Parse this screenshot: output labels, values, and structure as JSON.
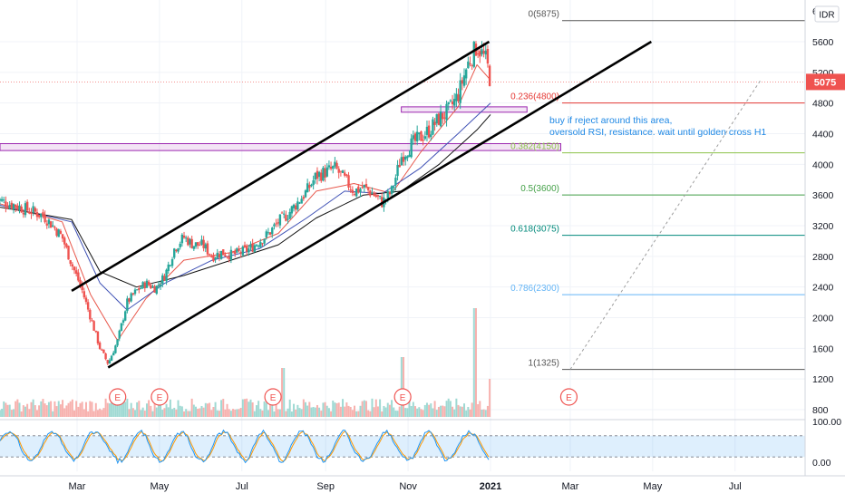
{
  "chart_data": {
    "type": "candlestick",
    "symbol_currency": "IDR",
    "last_price": 5075,
    "last_price_label": "5075",
    "price_axis": {
      "ticks": [
        800,
        1200,
        1600,
        2000,
        2400,
        2800,
        3200,
        3600,
        4000,
        4400,
        4800,
        5200,
        5600
      ],
      "top_partial_label": "6"
    },
    "time_axis": {
      "labels": [
        {
          "label": "Mar",
          "date": "2020-03-01"
        },
        {
          "label": "May",
          "date": "2020-05-01"
        },
        {
          "label": "Jul",
          "date": "2020-07-01"
        },
        {
          "label": "Sep",
          "date": "2020-09-01"
        },
        {
          "label": "Nov",
          "date": "2020-11-01"
        },
        {
          "label": "2021",
          "date": "2021-01-01"
        },
        {
          "label": "Mar",
          "date": "2021-03-01"
        },
        {
          "label": "May",
          "date": "2021-05-01"
        },
        {
          "label": "Jul",
          "date": "2021-07-01"
        }
      ]
    },
    "price_path": [
      [
        "2020-01-01",
        3550
      ],
      [
        "2020-01-08",
        3500
      ],
      [
        "2020-01-15",
        3470
      ],
      [
        "2020-01-22",
        3420
      ],
      [
        "2020-01-29",
        3380
      ],
      [
        "2020-02-05",
        3330
      ],
      [
        "2020-02-12",
        3200
      ],
      [
        "2020-02-19",
        3050
      ],
      [
        "2020-02-26",
        2700
      ],
      [
        "2020-03-04",
        2400
      ],
      [
        "2020-03-11",
        2000
      ],
      [
        "2020-03-18",
        1600
      ],
      [
        "2020-03-24",
        1400
      ],
      [
        "2020-03-31",
        1700
      ],
      [
        "2020-04-07",
        2200
      ],
      [
        "2020-04-14",
        2350
      ],
      [
        "2020-04-21",
        2450
      ],
      [
        "2020-04-28",
        2380
      ],
      [
        "2020-05-05",
        2550
      ],
      [
        "2020-05-12",
        2900
      ],
      [
        "2020-05-19",
        3050
      ],
      [
        "2020-05-26",
        2950
      ],
      [
        "2020-06-02",
        2950
      ],
      [
        "2020-06-09",
        2800
      ],
      [
        "2020-06-16",
        2850
      ],
      [
        "2020-06-23",
        2820
      ],
      [
        "2020-06-30",
        2850
      ],
      [
        "2020-07-07",
        2900
      ],
      [
        "2020-07-14",
        3000
      ],
      [
        "2020-07-21",
        3100
      ],
      [
        "2020-07-28",
        3250
      ],
      [
        "2020-08-04",
        3350
      ],
      [
        "2020-08-11",
        3500
      ],
      [
        "2020-08-18",
        3650
      ],
      [
        "2020-08-25",
        3850
      ],
      [
        "2020-09-01",
        3900
      ],
      [
        "2020-09-08",
        3950
      ],
      [
        "2020-09-15",
        3800
      ],
      [
        "2020-09-22",
        3650
      ],
      [
        "2020-09-29",
        3700
      ],
      [
        "2020-10-06",
        3620
      ],
      [
        "2020-10-13",
        3500
      ],
      [
        "2020-10-20",
        3650
      ],
      [
        "2020-10-27",
        4100
      ],
      [
        "2020-11-03",
        4250
      ],
      [
        "2020-11-10",
        4350
      ],
      [
        "2020-11-17",
        4450
      ],
      [
        "2020-11-24",
        4600
      ],
      [
        "2020-12-01",
        4700
      ],
      [
        "2020-12-08",
        4900
      ],
      [
        "2020-12-15",
        5300
      ],
      [
        "2020-12-22",
        5550
      ],
      [
        "2020-12-29",
        5350
      ],
      [
        "2021-01-01",
        5075
      ]
    ],
    "moving_averages": [
      {
        "color": "#e8564a",
        "points": [
          [
            "2020-01-01",
            3500
          ],
          [
            "2020-02-19",
            3250
          ],
          [
            "2020-03-11",
            2300
          ],
          [
            "2020-03-31",
            1700
          ],
          [
            "2020-04-21",
            2250
          ],
          [
            "2020-05-19",
            2750
          ],
          [
            "2020-06-23",
            2850
          ],
          [
            "2020-07-28",
            3100
          ],
          [
            "2020-08-25",
            3650
          ],
          [
            "2020-09-22",
            3750
          ],
          [
            "2020-10-20",
            3620
          ],
          [
            "2020-11-10",
            4150
          ],
          [
            "2020-12-08",
            4750
          ],
          [
            "2020-12-22",
            5300
          ],
          [
            "2021-01-01",
            5100
          ]
        ]
      },
      {
        "color": "#3f51b5",
        "points": [
          [
            "2020-01-01",
            3480
          ],
          [
            "2020-02-26",
            3250
          ],
          [
            "2020-03-18",
            2450
          ],
          [
            "2020-04-07",
            2100
          ],
          [
            "2020-05-05",
            2450
          ],
          [
            "2020-06-09",
            2750
          ],
          [
            "2020-07-14",
            2900
          ],
          [
            "2020-08-18",
            3300
          ],
          [
            "2020-09-15",
            3650
          ],
          [
            "2020-10-13",
            3620
          ],
          [
            "2020-11-10",
            3950
          ],
          [
            "2020-12-08",
            4400
          ],
          [
            "2021-01-01",
            4800
          ]
        ]
      },
      {
        "color": "#111111",
        "points": [
          [
            "2020-01-01",
            3450
          ],
          [
            "2020-02-26",
            3280
          ],
          [
            "2020-03-18",
            2600
          ],
          [
            "2020-04-14",
            2400
          ],
          [
            "2020-05-19",
            2550
          ],
          [
            "2020-06-23",
            2750
          ],
          [
            "2020-07-28",
            2950
          ],
          [
            "2020-08-25",
            3300
          ],
          [
            "2020-09-29",
            3600
          ],
          [
            "2020-10-27",
            3650
          ],
          [
            "2020-11-24",
            4000
          ],
          [
            "2020-12-22",
            4450
          ],
          [
            "2021-01-01",
            4650
          ]
        ]
      }
    ],
    "channel_lines": [
      {
        "points": [
          [
            "2020-02-26",
            2350
          ],
          [
            "2020-12-31",
            5600
          ]
        ]
      },
      {
        "points": [
          [
            "2020-03-24",
            1350
          ],
          [
            "2021-04-30",
            5600
          ]
        ]
      }
    ],
    "dotted_projection": {
      "points": [
        [
          "2021-03-01",
          1325
        ],
        [
          "2021-07-20",
          5100
        ]
      ]
    },
    "fibonacci": [
      {
        "label": "0(5875)",
        "value": 5875,
        "color": "#555555"
      },
      {
        "label": "0.236(4800)",
        "value": 4800,
        "color": "#e53935"
      },
      {
        "label": "0.382(4150)",
        "value": 4150,
        "color": "#8bc34a"
      },
      {
        "label": "0.5(3600)",
        "value": 3600,
        "color": "#43a047"
      },
      {
        "label": "0.618(3075)",
        "value": 3075,
        "color": "#00897b"
      },
      {
        "label": "0.786(2300)",
        "value": 2300,
        "color": "#64b5f6"
      },
      {
        "label": "1(1325)",
        "value": 1325,
        "color": "#555555"
      }
    ],
    "zones": [
      {
        "from": "2020-10-27",
        "to": "2021-01-28",
        "low": 4680,
        "high": 4750
      },
      {
        "from": "2020-01-01",
        "to": "2021-02-22",
        "low": 4180,
        "high": 4270
      }
    ],
    "annotation": {
      "lines": [
        "buy if reject around this area,",
        "oversold RSI, resistance. wait until golden cross H1"
      ],
      "color": "#1e88e5"
    },
    "earnings_markers": {
      "label": "E",
      "dates": [
        "2020-03-31",
        "2020-05-01",
        "2020-07-24",
        "2020-10-28",
        "2021-02-28"
      ]
    },
    "volume_spikes": [
      [
        "2020-07-31",
        0.45
      ],
      [
        "2020-10-28",
        0.55
      ],
      [
        "2020-12-21",
        1.0
      ],
      [
        "2021-01-01",
        0.35
      ]
    ],
    "stoch_rsi": {
      "axis_labels": [
        "100.00",
        "0.00"
      ],
      "upper_band": 80,
      "lower_band": 20,
      "k_color": "#2196f3",
      "d_color": "#ff9800"
    },
    "colors": {
      "up": "#26a69a",
      "down": "#ef5350",
      "last_price_bg": "#ef5350"
    }
  }
}
